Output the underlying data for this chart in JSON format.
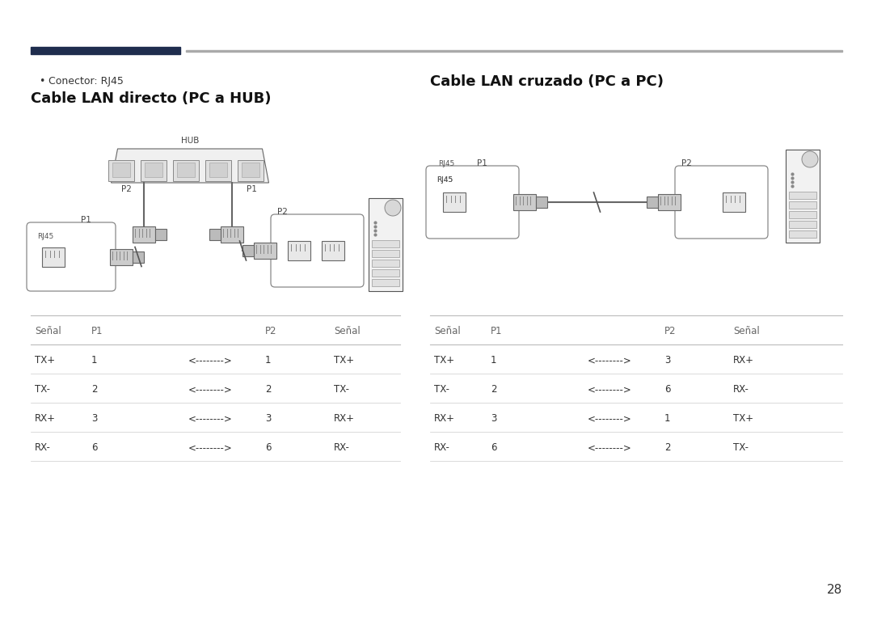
{
  "bg_color": "#ffffff",
  "text_color": "#333333",
  "dark_color": "#1f2d4e",
  "gray_color": "#aaaaaa",
  "bullet_text": "Conector: RJ45",
  "title_left": "Cable LAN directo (PC a HUB)",
  "title_right": "Cable LAN cruzado (PC a PC)",
  "table_left_headers": [
    "Señal",
    "P1",
    "",
    "P2",
    "Señal"
  ],
  "table_left_rows": [
    [
      "TX+",
      "1",
      "<-------->",
      "1",
      "TX+"
    ],
    [
      "TX-",
      "2",
      "<-------->",
      "2",
      "TX-"
    ],
    [
      "RX+",
      "3",
      "<-------->",
      "3",
      "RX+"
    ],
    [
      "RX-",
      "6",
      "<-------->",
      "6",
      "RX-"
    ]
  ],
  "table_right_headers": [
    "Señal",
    "P1",
    "",
    "P2",
    "Señal"
  ],
  "table_right_rows": [
    [
      "TX+",
      "1",
      "<-------->",
      "3",
      "RX+"
    ],
    [
      "TX-",
      "2",
      "<-------->",
      "6",
      "RX-"
    ],
    [
      "RX+",
      "3",
      "<-------->",
      "1",
      "TX+"
    ],
    [
      "RX-",
      "6",
      "<-------->",
      "2",
      "TX-"
    ]
  ],
  "page_number": "28"
}
